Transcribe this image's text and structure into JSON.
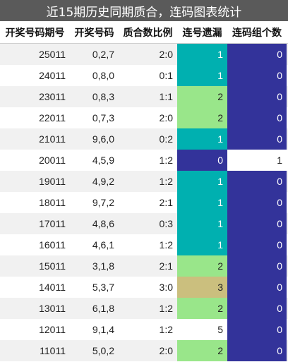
{
  "title": "近15期历史同期质合，连码图表统计",
  "headers": [
    "开奖号码期号",
    "开奖号码",
    "质合数比例",
    "连号遗漏",
    "连码组个数"
  ],
  "colors": {
    "teal": "#00b0b0",
    "green": "#99e68a",
    "tan": "#cbbf7e",
    "navy": "#33339a",
    "white": "#ffffff"
  },
  "rows": [
    {
      "period": "25011",
      "numbers": "0,2,7",
      "ratio": "2:0",
      "miss": "1",
      "groups": "0",
      "miss_color": "teal",
      "groups_color": "navy"
    },
    {
      "period": "24011",
      "numbers": "0,8,0",
      "ratio": "0:1",
      "miss": "1",
      "groups": "0",
      "miss_color": "teal",
      "groups_color": "navy"
    },
    {
      "period": "23011",
      "numbers": "0,8,3",
      "ratio": "1:1",
      "miss": "2",
      "groups": "0",
      "miss_color": "green",
      "groups_color": "navy"
    },
    {
      "period": "22011",
      "numbers": "0,7,3",
      "ratio": "2:0",
      "miss": "2",
      "groups": "0",
      "miss_color": "green",
      "groups_color": "navy"
    },
    {
      "period": "21011",
      "numbers": "9,6,0",
      "ratio": "0:2",
      "miss": "1",
      "groups": "0",
      "miss_color": "teal",
      "groups_color": "navy"
    },
    {
      "period": "20011",
      "numbers": "4,5,9",
      "ratio": "1:2",
      "miss": "0",
      "groups": "1",
      "miss_color": "navy",
      "groups_color": "white"
    },
    {
      "period": "19011",
      "numbers": "4,9,2",
      "ratio": "1:2",
      "miss": "1",
      "groups": "0",
      "miss_color": "teal",
      "groups_color": "navy"
    },
    {
      "period": "18011",
      "numbers": "9,7,2",
      "ratio": "2:1",
      "miss": "1",
      "groups": "0",
      "miss_color": "teal",
      "groups_color": "navy"
    },
    {
      "period": "17011",
      "numbers": "4,8,6",
      "ratio": "0:3",
      "miss": "1",
      "groups": "0",
      "miss_color": "teal",
      "groups_color": "navy"
    },
    {
      "period": "16011",
      "numbers": "4,6,1",
      "ratio": "1:2",
      "miss": "1",
      "groups": "0",
      "miss_color": "teal",
      "groups_color": "navy"
    },
    {
      "period": "15011",
      "numbers": "3,1,8",
      "ratio": "2:1",
      "miss": "2",
      "groups": "0",
      "miss_color": "green",
      "groups_color": "navy"
    },
    {
      "period": "14011",
      "numbers": "5,3,7",
      "ratio": "3:0",
      "miss": "3",
      "groups": "0",
      "miss_color": "tan",
      "groups_color": "navy"
    },
    {
      "period": "13011",
      "numbers": "6,1,8",
      "ratio": "1:2",
      "miss": "2",
      "groups": "0",
      "miss_color": "green",
      "groups_color": "navy"
    },
    {
      "period": "12011",
      "numbers": "9,1,4",
      "ratio": "1:2",
      "miss": "5",
      "groups": "0",
      "miss_color": "white",
      "groups_color": "navy"
    },
    {
      "period": "11011",
      "numbers": "5,0,2",
      "ratio": "2:0",
      "miss": "2",
      "groups": "0",
      "miss_color": "green",
      "groups_color": "navy"
    }
  ]
}
